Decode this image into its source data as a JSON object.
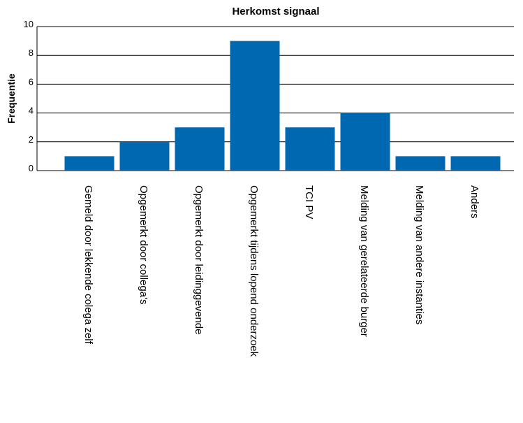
{
  "chart_data": {
    "type": "bar",
    "title": "Herkomst signaal",
    "xlabel": "",
    "ylabel": "Frequentie",
    "ylim": [
      0,
      10
    ],
    "yticks": [
      "0",
      "2",
      "4",
      "6",
      "8",
      "10"
    ],
    "grid": true,
    "legend": "none",
    "categories": [
      "Gemeld door lekkende colega zelf",
      "Opgemerkt door collega's",
      "Opgemerkt door leidinggevende",
      "Opgemerkt tijdens lopend onderzoek",
      "TCI PV",
      "Melding van gerelateerde burger",
      "Melding van andere instanties",
      "Anders"
    ],
    "values": [
      1,
      2,
      3,
      9,
      3,
      4,
      1,
      1
    ],
    "bar_color": "#0067b1"
  }
}
